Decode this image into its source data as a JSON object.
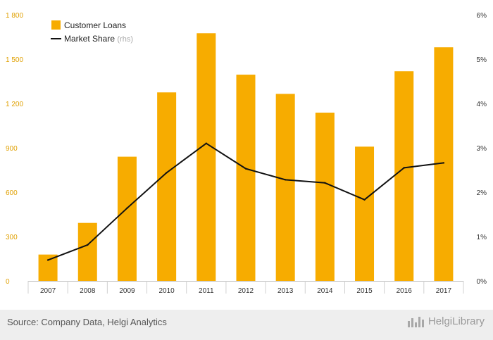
{
  "chart_data": {
    "type": "bar",
    "title": "",
    "xlabel": "",
    "ylabel": "",
    "categories": [
      "2007",
      "2008",
      "2009",
      "2010",
      "2011",
      "2012",
      "2013",
      "2014",
      "2015",
      "2016",
      "2017"
    ],
    "series": [
      {
        "name": "Customer Loans",
        "type": "bar",
        "axis": "left",
        "color": "#f7ac00",
        "values": [
          178,
          392,
          840,
          1275,
          1675,
          1395,
          1265,
          1138,
          908,
          1418,
          1580
        ]
      },
      {
        "name": "Market Share",
        "legend_suffix": "(rhs)",
        "type": "line",
        "axis": "right",
        "color": "#111111",
        "values": [
          0.47,
          0.81,
          1.64,
          2.44,
          3.1,
          2.53,
          2.28,
          2.21,
          1.83,
          2.55,
          2.66
        ]
      }
    ],
    "left_axis": {
      "ylim": [
        0,
        1800
      ],
      "ticks": [
        0,
        300,
        600,
        900,
        1200,
        1500,
        1800
      ],
      "tick_labels": [
        "0",
        "300",
        "600",
        "900",
        "1 200",
        "1 500",
        "1 800"
      ]
    },
    "right_axis": {
      "ylim": [
        0,
        6
      ],
      "ticks": [
        0,
        1,
        2,
        3,
        4,
        5,
        6
      ],
      "tick_labels": [
        "0%",
        "1%",
        "2%",
        "3%",
        "4%",
        "5%",
        "6%"
      ]
    },
    "grid": false,
    "legend_position": "top-left"
  },
  "colors": {
    "bar": "#f7ac00",
    "line": "#111111",
    "left_tick_text": "#e0a000",
    "right_tick_text": "#333333",
    "footer_background": "#eeeeee"
  },
  "footer": {
    "source": "Source: Company Data, Helgi Analytics",
    "logo_text": "HelgiLibrary"
  }
}
